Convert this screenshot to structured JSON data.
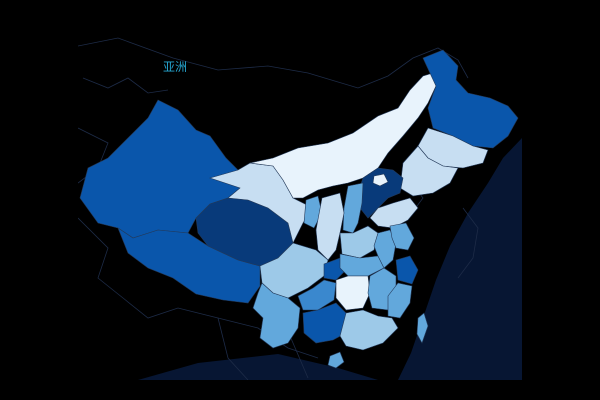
{
  "map": {
    "region_label": "亚洲",
    "background_color": "#000000",
    "ocean_color": "#071633",
    "neighbor_fill": "#000000",
    "neighbor_border": "#1d2b47",
    "color_scale": [
      "#e8f3fc",
      "#c7def2",
      "#9dc9e8",
      "#62a8dc",
      "#3a88ce",
      "#0a56ab",
      "#083a7a"
    ],
    "provinces": [
      {
        "name": "xinjiang",
        "level": 5
      },
      {
        "name": "tibet",
        "level": 5
      },
      {
        "name": "qinghai",
        "level": 6
      },
      {
        "name": "gansu",
        "level": 1
      },
      {
        "name": "inner-mongolia",
        "level": 0
      },
      {
        "name": "heilongjiang",
        "level": 5
      },
      {
        "name": "jilin",
        "level": 1
      },
      {
        "name": "liaoning",
        "level": 1
      },
      {
        "name": "beijing",
        "level": 6
      },
      {
        "name": "hebei",
        "level": 0
      },
      {
        "name": "shanxi",
        "level": 3
      },
      {
        "name": "shandong",
        "level": 1
      },
      {
        "name": "ningxia",
        "level": 3
      },
      {
        "name": "shaanxi",
        "level": 1
      },
      {
        "name": "henan",
        "level": 2
      },
      {
        "name": "sichuan",
        "level": 2
      },
      {
        "name": "chongqing",
        "level": 5
      },
      {
        "name": "hubei",
        "level": 3
      },
      {
        "name": "anhui",
        "level": 3
      },
      {
        "name": "jiangsu",
        "level": 3
      },
      {
        "name": "zhejiang",
        "level": 5
      },
      {
        "name": "hunan",
        "level": 0
      },
      {
        "name": "jiangxi",
        "level": 3
      },
      {
        "name": "guizhou",
        "level": 4
      },
      {
        "name": "yunnan",
        "level": 3
      },
      {
        "name": "guangxi",
        "level": 5
      },
      {
        "name": "guangdong",
        "level": 2
      },
      {
        "name": "fujian",
        "level": 3
      },
      {
        "name": "taiwan",
        "level": 3
      },
      {
        "name": "hainan",
        "level": 3
      }
    ]
  }
}
